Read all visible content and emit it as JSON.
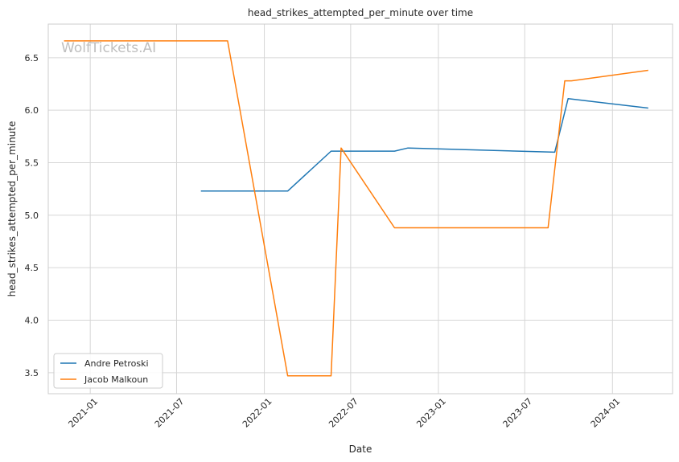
{
  "chart_data": {
    "type": "line",
    "title": "head_strikes_attempted_per_minute over time",
    "xlabel": "Date",
    "ylabel": "head_strikes_attempted_per_minute",
    "watermark": "WolfTickets.AI",
    "x_type": "date",
    "xlim": [
      "2020-10-05",
      "2024-05-06"
    ],
    "ylim": [
      3.3,
      6.82
    ],
    "x_ticks": [
      "2021-01",
      "2021-07",
      "2022-01",
      "2022-07",
      "2023-01",
      "2023-07",
      "2024-01"
    ],
    "y_ticks": [
      3.5,
      4.0,
      4.5,
      5.0,
      5.5,
      6.0,
      6.5
    ],
    "grid": true,
    "legend_position": "lower-left",
    "series": [
      {
        "name": "Andre Petroski",
        "color": "#1f77b4",
        "points": [
          [
            "2021-08-21",
            5.23
          ],
          [
            "2022-02-19",
            5.23
          ],
          [
            "2022-05-21",
            5.61
          ],
          [
            "2022-10-01",
            5.61
          ],
          [
            "2022-10-29",
            5.64
          ],
          [
            "2023-09-02",
            5.6
          ],
          [
            "2023-09-30",
            6.11
          ],
          [
            "2024-03-16",
            6.02
          ]
        ]
      },
      {
        "name": "Jacob Malkoun",
        "color": "#ff7f0e",
        "points": [
          [
            "2020-11-07",
            6.66
          ],
          [
            "2021-10-16",
            6.66
          ],
          [
            "2022-02-19",
            3.47
          ],
          [
            "2022-05-21",
            3.47
          ],
          [
            "2022-06-11",
            5.64
          ],
          [
            "2022-10-01",
            4.88
          ],
          [
            "2023-08-19",
            4.88
          ],
          [
            "2023-09-23",
            6.28
          ],
          [
            "2023-10-07",
            6.28
          ],
          [
            "2024-03-16",
            6.38
          ]
        ]
      }
    ]
  }
}
